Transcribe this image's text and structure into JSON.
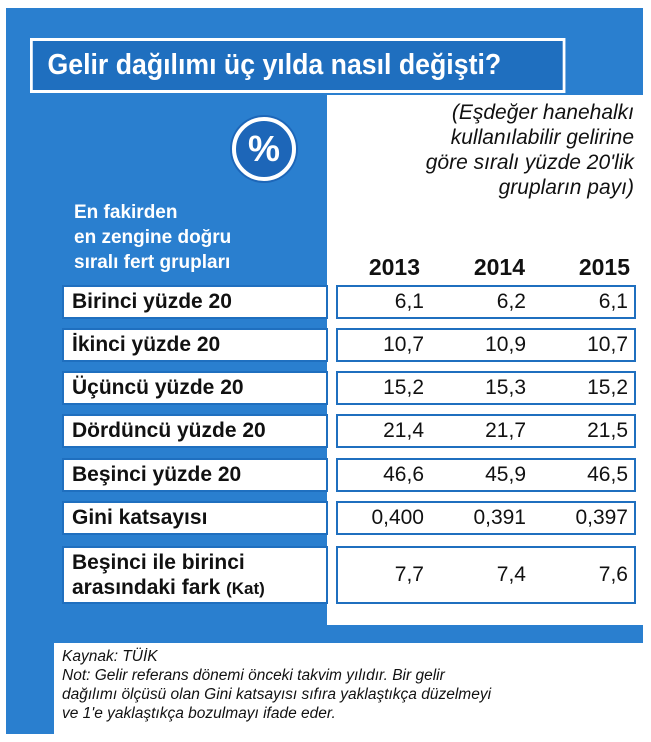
{
  "title": "Gelir dağılımı üç yılda nasıl değişti?",
  "subtitle_lines": [
    "(Eşdeğer hanehalkı",
    "kullanılabilir gelirine",
    "göre sıralı yüzde 20'lik",
    "grupların payı)"
  ],
  "badge": "%",
  "group_label_lines": [
    "En fakirden",
    "en zengine doğru",
    "sıralı fert grupları"
  ],
  "chart_data": {
    "type": "table",
    "columns": [
      "2013",
      "2014",
      "2015"
    ],
    "rows": [
      {
        "label": "Birinci yüzde 20",
        "values": [
          "6,1",
          "6,2",
          "6,1"
        ]
      },
      {
        "label": "İkinci yüzde 20",
        "values": [
          "10,7",
          "10,9",
          "10,7"
        ]
      },
      {
        "label": "Üçüncü yüzde 20",
        "values": [
          "15,2",
          "15,3",
          "15,2"
        ]
      },
      {
        "label": "Dördüncü yüzde 20",
        "values": [
          "21,4",
          "21,7",
          "21,5"
        ]
      },
      {
        "label": "Beşinci yüzde 20",
        "values": [
          "46,6",
          "45,9",
          "46,5"
        ]
      },
      {
        "label": "Gini katsayısı",
        "values": [
          "0,400",
          "0,391",
          "0,397"
        ]
      },
      {
        "label_line1": "Beşinci ile birinci",
        "label_line2": "arasındaki fark",
        "label_unit": "(Kat)",
        "values": [
          "7,7",
          "7,4",
          "7,6"
        ]
      }
    ]
  },
  "footer": {
    "source": "Kaynak: TÜİK",
    "note_lines": [
      "Not: Gelir referans dönemi önceki takvim yılıdır. Bir gelir",
      "dağılımı ölçüsü olan Gini katsayısı sıfıra yaklaştıkça düzelmeyi",
      "ve 1'e yaklaştıkça bozulmayı ifade eder."
    ]
  }
}
